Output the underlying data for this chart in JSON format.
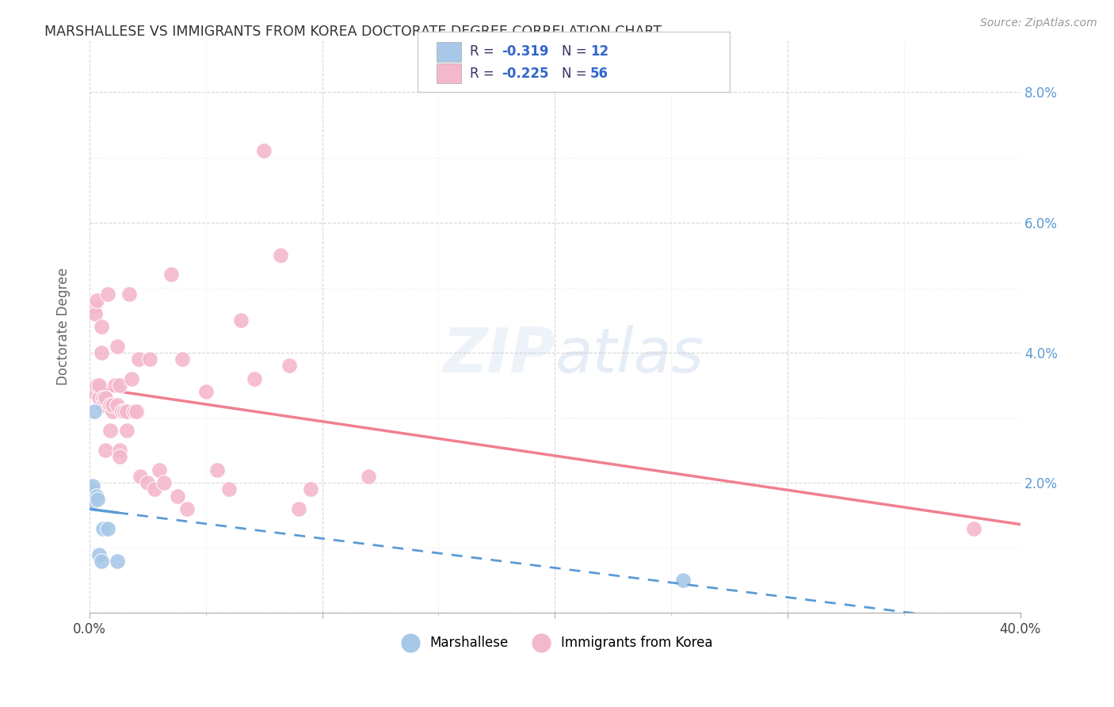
{
  "title": "MARSHALLESE VS IMMIGRANTS FROM KOREA DOCTORATE DEGREE CORRELATION CHART",
  "source": "Source: ZipAtlas.com",
  "ylabel": "Doctorate Degree",
  "xlim": [
    0.0,
    0.4
  ],
  "ylim": [
    0.0,
    0.088
  ],
  "marshallese_color": "#a8c8e8",
  "korea_color": "#f4b8cb",
  "trend_marshallese_color": "#5b9bd5",
  "trend_korea_color": "#f08090",
  "watermark_zip": "ZIP",
  "watermark_atlas": "atlas",
  "marshallese_x": [
    0.0008,
    0.001,
    0.0015,
    0.002,
    0.003,
    0.0035,
    0.004,
    0.005,
    0.006,
    0.008,
    0.012,
    0.255
  ],
  "marshallese_y": [
    0.019,
    0.017,
    0.0195,
    0.031,
    0.018,
    0.0175,
    0.009,
    0.008,
    0.013,
    0.013,
    0.008,
    0.005
  ],
  "korea_x": [
    0.001,
    0.002,
    0.0025,
    0.003,
    0.003,
    0.004,
    0.004,
    0.005,
    0.005,
    0.006,
    0.006,
    0.007,
    0.007,
    0.007,
    0.008,
    0.009,
    0.009,
    0.01,
    0.01,
    0.011,
    0.012,
    0.012,
    0.013,
    0.013,
    0.013,
    0.014,
    0.015,
    0.016,
    0.016,
    0.017,
    0.018,
    0.019,
    0.02,
    0.021,
    0.022,
    0.025,
    0.026,
    0.028,
    0.03,
    0.032,
    0.035,
    0.038,
    0.04,
    0.042,
    0.05,
    0.055,
    0.06,
    0.065,
    0.071,
    0.075,
    0.082,
    0.086,
    0.12,
    0.38,
    0.09,
    0.095
  ],
  "korea_y": [
    0.034,
    0.047,
    0.046,
    0.035,
    0.048,
    0.033,
    0.035,
    0.044,
    0.04,
    0.033,
    0.032,
    0.033,
    0.033,
    0.025,
    0.049,
    0.032,
    0.028,
    0.031,
    0.032,
    0.035,
    0.041,
    0.032,
    0.025,
    0.024,
    0.035,
    0.031,
    0.031,
    0.031,
    0.028,
    0.049,
    0.036,
    0.031,
    0.031,
    0.039,
    0.021,
    0.02,
    0.039,
    0.019,
    0.022,
    0.02,
    0.052,
    0.018,
    0.039,
    0.016,
    0.034,
    0.022,
    0.019,
    0.045,
    0.036,
    0.071,
    0.055,
    0.038,
    0.021,
    0.013,
    0.016,
    0.019
  ],
  "trend_m_x0": 0.0,
  "trend_m_y0": 0.0175,
  "trend_m_x1": 0.013,
  "trend_m_y1": 0.013,
  "trend_m_xsolid_end": 0.26,
  "trend_m_xdash_end": 0.4,
  "trend_k_x0": 0.0,
  "trend_k_y0": 0.036,
  "trend_k_x1": 0.4,
  "trend_k_y1": 0.016
}
